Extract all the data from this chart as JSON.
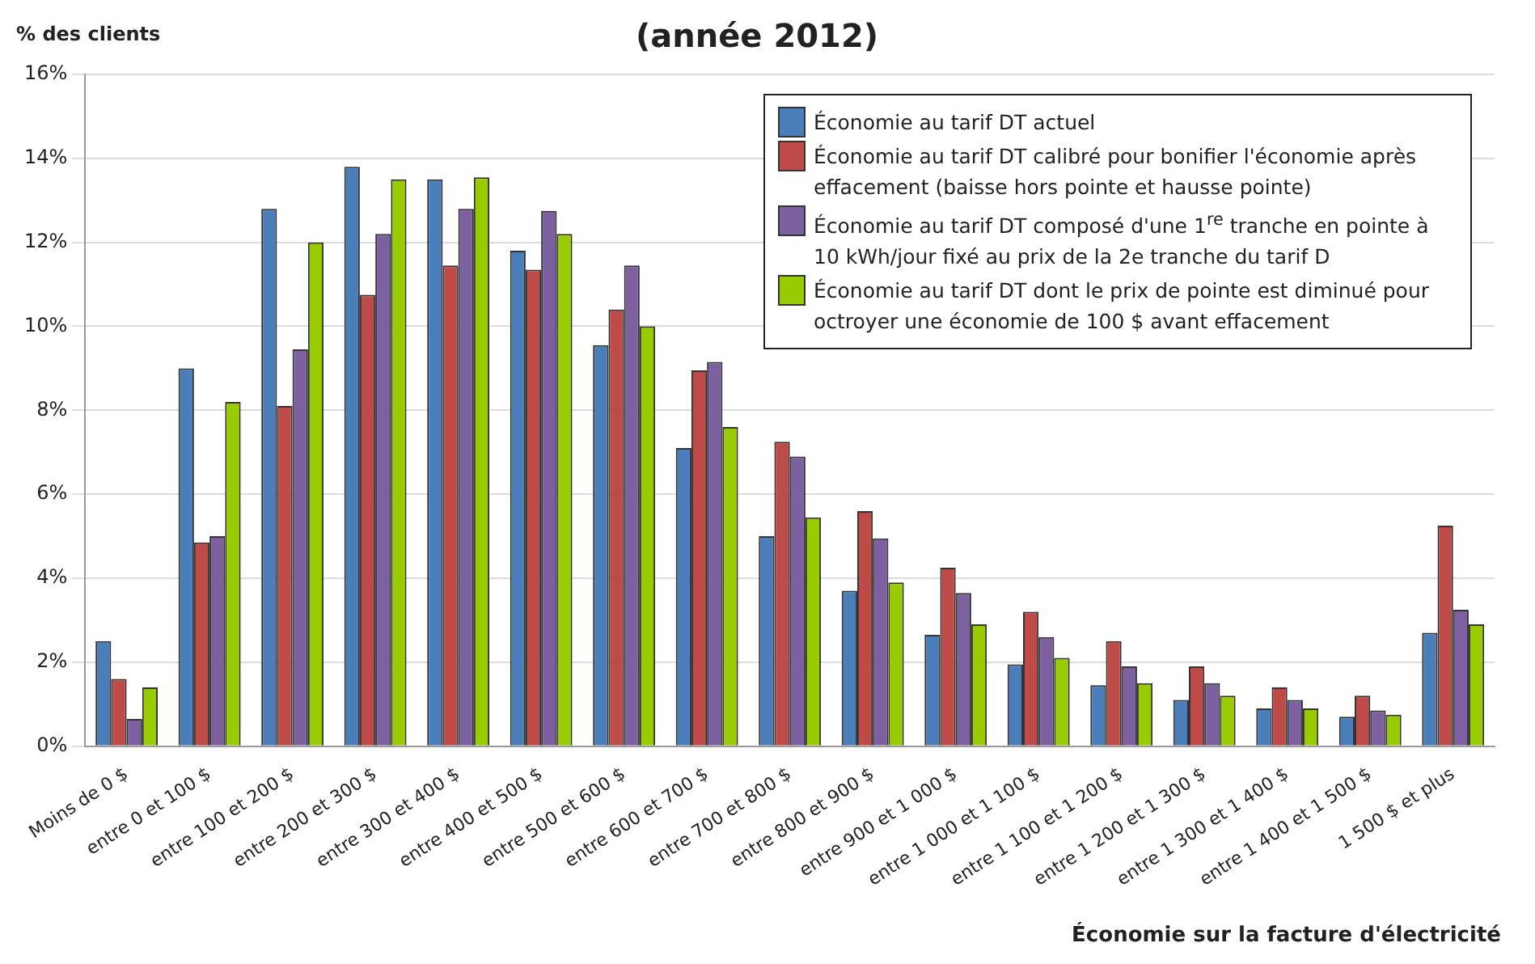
{
  "chart_data": {
    "type": "bar",
    "title": "(année 2012)",
    "ylabel": "% des clients",
    "xlabel": "Économie sur la facture d'électricité",
    "categories": [
      "Moins de 0 $",
      "entre 0 et 100 $",
      "entre 100 et 200 $",
      "entre 200 et 300 $",
      "entre 300 et 400 $",
      "entre 400 et 500 $",
      "entre 500 et 600 $",
      "entre 600 et 700 $",
      "entre 700 et 800 $",
      "entre 800 et 900 $",
      "entre 900 et 1 000 $",
      "entre 1 000 et 1 100 $",
      "entre 1 100 et 1 200 $",
      "entre 1 200 et 1 300 $",
      "entre 1 300 et 1 400 $",
      "entre 1 400 et 1 500 $",
      "1 500 $ et plus"
    ],
    "series": [
      {
        "name": "Économie au tarif DT actuel",
        "color": "#4a7ebb",
        "values": [
          2.5,
          9.0,
          12.8,
          13.8,
          13.5,
          11.8,
          9.55,
          7.1,
          5.0,
          3.7,
          2.65,
          1.95,
          1.45,
          1.1,
          0.9,
          0.7,
          2.7
        ]
      },
      {
        "name": "Économie au tarif DT calibré pour bonifier l'économie après effacement (baisse hors pointe et hausse pointe)",
        "color": "#be4b48",
        "values": [
          1.6,
          4.85,
          8.1,
          10.75,
          11.45,
          11.35,
          10.4,
          8.95,
          7.25,
          5.6,
          4.25,
          3.2,
          2.5,
          1.9,
          1.4,
          1.2,
          5.25
        ]
      },
      {
        "name": "Économie au tarif DT composé d'une 1$^{re}$ tranche en pointe à 10 kWh/jour fixé au prix de la 2e tranche du tarif D",
        "color": "#7d60a0",
        "values": [
          0.65,
          5.0,
          9.45,
          12.2,
          12.8,
          12.75,
          11.45,
          9.15,
          6.9,
          4.95,
          3.65,
          2.6,
          1.9,
          1.5,
          1.1,
          0.85,
          3.25
        ]
      },
      {
        "name": "Économie au tarif DT dont le prix de pointe est diminué pour octroyer une économie de 100 $ avant effacement",
        "color": "#99cc00",
        "values": [
          1.4,
          8.2,
          12.0,
          13.5,
          13.55,
          12.2,
          10.0,
          7.6,
          5.45,
          3.9,
          2.9,
          2.1,
          1.5,
          1.2,
          0.9,
          0.75,
          2.9
        ]
      }
    ],
    "ylim": [
      0,
      16
    ],
    "yticks": [
      {
        "value": 0,
        "label": "0%"
      },
      {
        "value": 2,
        "label": "2%"
      },
      {
        "value": 4,
        "label": "4%"
      },
      {
        "value": 6,
        "label": "6%"
      },
      {
        "value": 8,
        "label": "8%"
      },
      {
        "value": 10,
        "label": "10%"
      },
      {
        "value": 12,
        "label": "12%"
      },
      {
        "value": 14,
        "label": "14%"
      },
      {
        "value": 16,
        "label": "16%"
      }
    ],
    "grid": "y",
    "legend": "top right"
  }
}
